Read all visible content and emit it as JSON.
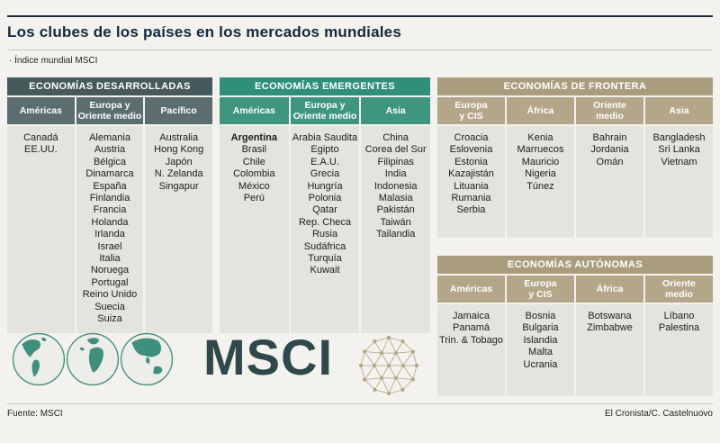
{
  "page": {
    "title": "Los clubes de los países en los mercados mundiales",
    "subtitle": "· Índice mundial MSCI",
    "source": "Fuente: MSCI",
    "credit": "El Cronista/C. Castelnuovo",
    "logo_text": "MSCI"
  },
  "icons": {
    "globes": "world-globes-icon",
    "network": "network-globe-icon"
  },
  "colors": {
    "page_bg": "#f3f2ee",
    "body_bg": "#e4e3dd",
    "title_text": "#15293c",
    "logo_color": "#2e484b",
    "globe_color": "#3f8f7d",
    "network_color": "#b3a585"
  },
  "highlight_country": "Argentina",
  "chart_data": {
    "type": "table",
    "title": "Los clubes de los países en los mercados mundiales",
    "tables": [
      {
        "id": "developed",
        "title": "ECONOMÍAS DESARROLLADAS",
        "header_color": "#46595b",
        "subheader_color": "#5b6d6e",
        "columns": [
          {
            "header": "Américas",
            "countries": [
              "Canadá",
              "EE.UU."
            ]
          },
          {
            "header": "Europa y\nOriente medio",
            "countries": [
              "Alemania",
              "Austria",
              "Bélgica",
              "Dinamarca",
              "España",
              "Finlandia",
              "Francia",
              "Holanda",
              "Irlanda",
              "Israel",
              "Italia",
              "Noruega",
              "Portugal",
              "Reino Unido",
              "Suecia",
              "Suiza"
            ]
          },
          {
            "header": "Pacífico",
            "countries": [
              "Australia",
              "Hong Kong",
              "Japón",
              "N. Zelanda",
              "Singapur"
            ]
          }
        ]
      },
      {
        "id": "emerging",
        "title": "ECONOMÍAS EMERGENTES",
        "header_color": "#2f8f7a",
        "subheader_color": "#3f967f",
        "columns": [
          {
            "header": "Américas",
            "countries": [
              "Argentina",
              "Brasil",
              "Chile",
              "Colombia",
              "México",
              "Perú"
            ]
          },
          {
            "header": "Europa y\nOriente medio",
            "countries": [
              "Arabia Saudita",
              "Egipto",
              "E.A.U.",
              "Grecia",
              "Hungría",
              "Polonia",
              "Qatar",
              "Rep. Checa",
              "Rusia",
              "Sudáfrica",
              "Turquía",
              "Kuwait"
            ]
          },
          {
            "header": "Asia",
            "countries": [
              "China",
              "Corea del Sur",
              "Filipinas",
              "India",
              "Indonesia",
              "Malasia",
              "Pakistán",
              "Taiwán",
              "Tailandia"
            ]
          }
        ]
      },
      {
        "id": "frontier",
        "title": "ECONOMÍAS DE FRONTERA",
        "header_color": "#aa9d7d",
        "subheader_color": "#b3a689",
        "columns": [
          {
            "header": "Europa\ny CIS",
            "countries": [
              "Croacia",
              "Eslovenia",
              "Estonia",
              "Kazajistán",
              "Lituania",
              "Rumania",
              "Serbia"
            ]
          },
          {
            "header": "África",
            "countries": [
              "Kenia",
              "Marruecos",
              "Mauricio",
              "Nigeria",
              "Túnez"
            ]
          },
          {
            "header": "Oriente\nmedio",
            "countries": [
              "Bahrain",
              "Jordania",
              "Omán"
            ]
          },
          {
            "header": "Asia",
            "countries": [
              "Bangladesh",
              "Sri Lanka",
              "Vietnam"
            ]
          }
        ]
      },
      {
        "id": "autonomous",
        "title": "ECONOMÍAS AUTÓNOMAS",
        "header_color": "#aa9d7d",
        "subheader_color": "#b3a689",
        "columns": [
          {
            "header": "Américas",
            "countries": [
              "Jamaica",
              "Panamá",
              "Trin. & Tobago"
            ]
          },
          {
            "header": "Europa\ny CIS",
            "countries": [
              "Bosnia",
              "Bulgaria",
              "Islandia",
              "Malta",
              "Ucrania"
            ]
          },
          {
            "header": "África",
            "countries": [
              "Botswana",
              "Zimbabwe"
            ]
          },
          {
            "header": "Oriente\nmedio",
            "countries": [
              "Líbano",
              "Palestina"
            ]
          }
        ]
      }
    ]
  }
}
